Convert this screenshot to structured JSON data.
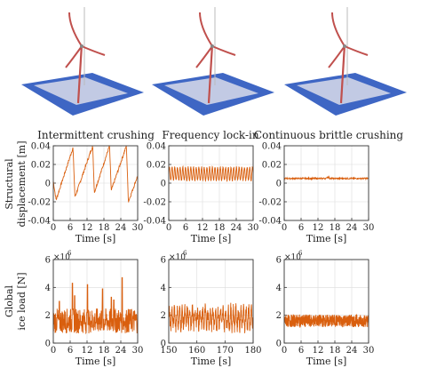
{
  "colors": {
    "signal": "#d95f0e",
    "grid": "#dcdcdc",
    "axis": "#333333",
    "water": "#3e66c4",
    "ice": "#d9dcea",
    "tower": "#c0504d"
  },
  "illustrations": [
    {
      "name": "turbine-intermittent"
    },
    {
      "name": "turbine-lockin"
    },
    {
      "name": "turbine-brittle"
    }
  ],
  "rows": {
    "displacement": {
      "ylabel_line1": "Structural",
      "ylabel_line2": "displacement [m]"
    },
    "load": {
      "ylabel_line1": "Global",
      "ylabel_line2": "ice load [N]",
      "exponent_base": "×10",
      "exponent_power": "6"
    }
  },
  "panels": [
    {
      "title": "Intermittent crushing",
      "xlabel": "Time [s]",
      "xticks": [
        "0",
        "6",
        "12",
        "18",
        "24",
        "30"
      ],
      "yticks": [
        "0.04",
        "0.02",
        "0",
        "-0.02",
        "-0.04"
      ],
      "xlim": [
        0,
        30
      ],
      "ylim": [
        -0.04,
        0.04
      ],
      "regime": "sawtooth"
    },
    {
      "title": "Frequency lock-in",
      "xlabel": "Time [s]",
      "xticks": [
        "0",
        "6",
        "12",
        "18",
        "24",
        "30"
      ],
      "yticks": [
        "0.04",
        "0.02",
        "0",
        "-0.02",
        "-0.04"
      ],
      "xlim": [
        0,
        30
      ],
      "ylim": [
        -0.04,
        0.04
      ],
      "regime": "sinusoid"
    },
    {
      "title": "Continuous brittle crushing",
      "xlabel": "Time [s]",
      "xticks": [
        "0",
        "6",
        "12",
        "18",
        "24",
        "30"
      ],
      "yticks": [
        "0.04",
        "0.02",
        "0",
        "-0.02",
        "-0.04"
      ],
      "xlim": [
        0,
        30
      ],
      "ylim": [
        -0.04,
        0.04
      ],
      "regime": "flat"
    },
    {
      "title": "",
      "xlabel": "Time [s]",
      "xticks": [
        "0",
        "6",
        "12",
        "18",
        "24",
        "30"
      ],
      "yticks": [
        "6",
        "4",
        "2",
        "0"
      ],
      "xlim": [
        0,
        30
      ],
      "ylim": [
        0,
        6
      ],
      "regime": "spiky"
    },
    {
      "title": "",
      "xlabel": "Time [s]",
      "xticks": [
        "150",
        "160",
        "170",
        "180"
      ],
      "yticks": [
        "6",
        "4",
        "2",
        "0"
      ],
      "xlim": [
        150,
        180
      ],
      "ylim": [
        0,
        6
      ],
      "regime": "oscillating"
    },
    {
      "title": "",
      "xlabel": "Time [s]",
      "xticks": [
        "0",
        "6",
        "12",
        "18",
        "24",
        "30"
      ],
      "yticks": [
        "6",
        "4",
        "2",
        "0"
      ],
      "xlim": [
        0,
        30
      ],
      "ylim": [
        0,
        6
      ],
      "regime": "noise"
    }
  ],
  "chart_data": [
    {
      "type": "line",
      "title": "Intermittent crushing",
      "xlabel": "Time [s]",
      "ylabel": "Structural displacement [m]",
      "xlim": [
        0,
        30
      ],
      "ylim": [
        -0.04,
        0.04
      ],
      "series": [
        {
          "x": [
            0,
            1,
            2,
            3,
            4,
            5,
            6,
            7,
            8,
            9,
            10,
            11,
            12,
            13,
            14,
            15,
            16,
            17,
            18,
            19,
            20,
            21,
            22,
            23,
            24,
            25,
            26,
            27,
            28,
            29,
            30
          ],
          "values": [
            0,
            -0.02,
            -0.01,
            0.0,
            0.01,
            0.02,
            0.03,
            0.04,
            0.01,
            -0.01,
            0.0,
            0.01,
            0.02,
            0.03,
            0.04,
            -0.01,
            0.0,
            0.01,
            0.02,
            0.03,
            0.04,
            0.01,
            0.0,
            0.01,
            0.02,
            0.03,
            0.04,
            -0.02,
            -0.01,
            0.0,
            0.01
          ]
        }
      ],
      "grid": true
    },
    {
      "type": "line",
      "title": "Frequency lock-in",
      "xlabel": "Time [s]",
      "ylabel": "Structural displacement [m]",
      "xlim": [
        0,
        30
      ],
      "ylim": [
        -0.04,
        0.04
      ],
      "series": [
        {
          "x": [
            0,
            1,
            2,
            3,
            4,
            5,
            6,
            7,
            8,
            9,
            10,
            11,
            12,
            13,
            14,
            15,
            16,
            17,
            18,
            19,
            20,
            21,
            22,
            23,
            24,
            25,
            26,
            27,
            28,
            29,
            30
          ],
          "values": [
            0.005,
            0.018,
            0.003,
            0.016,
            0.002,
            0.017,
            0.004,
            0.016,
            0.002,
            0.017,
            0.003,
            0.016,
            0.004,
            0.015,
            0.003,
            0.016,
            0.004,
            0.017,
            0.003,
            0.016,
            0.002,
            0.015,
            0.004,
            0.016,
            0.003,
            0.017,
            0.004,
            0.016,
            0.003,
            0.017,
            0.006
          ]
        }
      ],
      "grid": true
    },
    {
      "type": "line",
      "title": "Continuous brittle crushing",
      "xlabel": "Time [s]",
      "ylabel": "Structural displacement [m]",
      "xlim": [
        0,
        30
      ],
      "ylim": [
        -0.04,
        0.04
      ],
      "series": [
        {
          "x": [
            0,
            3,
            6,
            9,
            12,
            15,
            18,
            21,
            24,
            27,
            30
          ],
          "values": [
            0.005,
            0.005,
            0.004,
            0.005,
            0.005,
            0.006,
            0.005,
            0.005,
            0.004,
            0.005,
            0.005
          ]
        }
      ],
      "grid": true
    },
    {
      "type": "line",
      "xlabel": "Time [s]",
      "ylabel": "Global ice load [N]",
      "y_exponent": "×10^6",
      "xlim": [
        0,
        30
      ],
      "ylim": [
        0,
        6
      ],
      "series": [
        {
          "x": [
            0,
            1,
            2,
            3,
            4,
            5,
            6,
            7,
            8,
            9,
            10,
            11,
            12,
            13,
            14,
            15,
            16,
            17,
            18,
            19,
            20,
            21,
            22,
            23,
            24,
            25,
            26,
            27,
            28,
            29,
            30
          ],
          "values": [
            1.8,
            1.0,
            3.0,
            1.6,
            0.8,
            2.2,
            1.9,
            4.2,
            1.2,
            1.5,
            2.6,
            1.9,
            4.2,
            1.0,
            1.7,
            2.4,
            2.0,
            3.9,
            1.1,
            1.8,
            2.7,
            3.3,
            1.0,
            1.9,
            4.7,
            1.4,
            1.6,
            2.3,
            1.5,
            1.8,
            1.6
          ]
        }
      ],
      "grid": true
    },
    {
      "type": "line",
      "xlabel": "Time [s]",
      "ylabel": "Global ice load [N]",
      "y_exponent": "×10^6",
      "xlim": [
        150,
        180
      ],
      "ylim": [
        0,
        6
      ],
      "series": [
        {
          "x": [
            150,
            151,
            152,
            153,
            154,
            155,
            156,
            157,
            158,
            159,
            160,
            161,
            162,
            163,
            164,
            165,
            166,
            167,
            168,
            169,
            170,
            171,
            172,
            173,
            174,
            175,
            176,
            177,
            178,
            179,
            180
          ],
          "values": [
            1.6,
            2.5,
            1.2,
            2.6,
            1.0,
            2.4,
            1.3,
            2.7,
            1.1,
            2.5,
            1.2,
            2.6,
            1.1,
            2.4,
            1.3,
            2.6,
            1.0,
            2.5,
            1.2,
            2.4,
            1.1,
            2.6,
            1.3,
            2.5,
            1.0,
            2.4,
            1.2,
            2.6,
            1.1,
            2.5,
            1.6
          ]
        }
      ],
      "grid": true
    },
    {
      "type": "line",
      "xlabel": "Time [s]",
      "ylabel": "Global ice load [N]",
      "y_exponent": "×10^6",
      "xlim": [
        0,
        30
      ],
      "ylim": [
        0,
        6
      ],
      "series": [
        {
          "x": [
            0,
            1,
            2,
            3,
            4,
            5,
            6,
            7,
            8,
            9,
            10,
            11,
            12,
            13,
            14,
            15,
            16,
            17,
            18,
            19,
            20,
            21,
            22,
            23,
            24,
            25,
            26,
            27,
            28,
            29,
            30
          ],
          "values": [
            1.6,
            1.9,
            1.3,
            2.1,
            1.4,
            1.8,
            1.5,
            2.2,
            1.3,
            1.7,
            1.6,
            2.0,
            1.4,
            1.9,
            1.5,
            1.8,
            1.3,
            2.1,
            1.6,
            1.7,
            1.4,
            2.0,
            1.5,
            1.8,
            1.3,
            1.9,
            1.6,
            2.1,
            1.4,
            1.8,
            1.6
          ]
        }
      ],
      "grid": true
    }
  ]
}
